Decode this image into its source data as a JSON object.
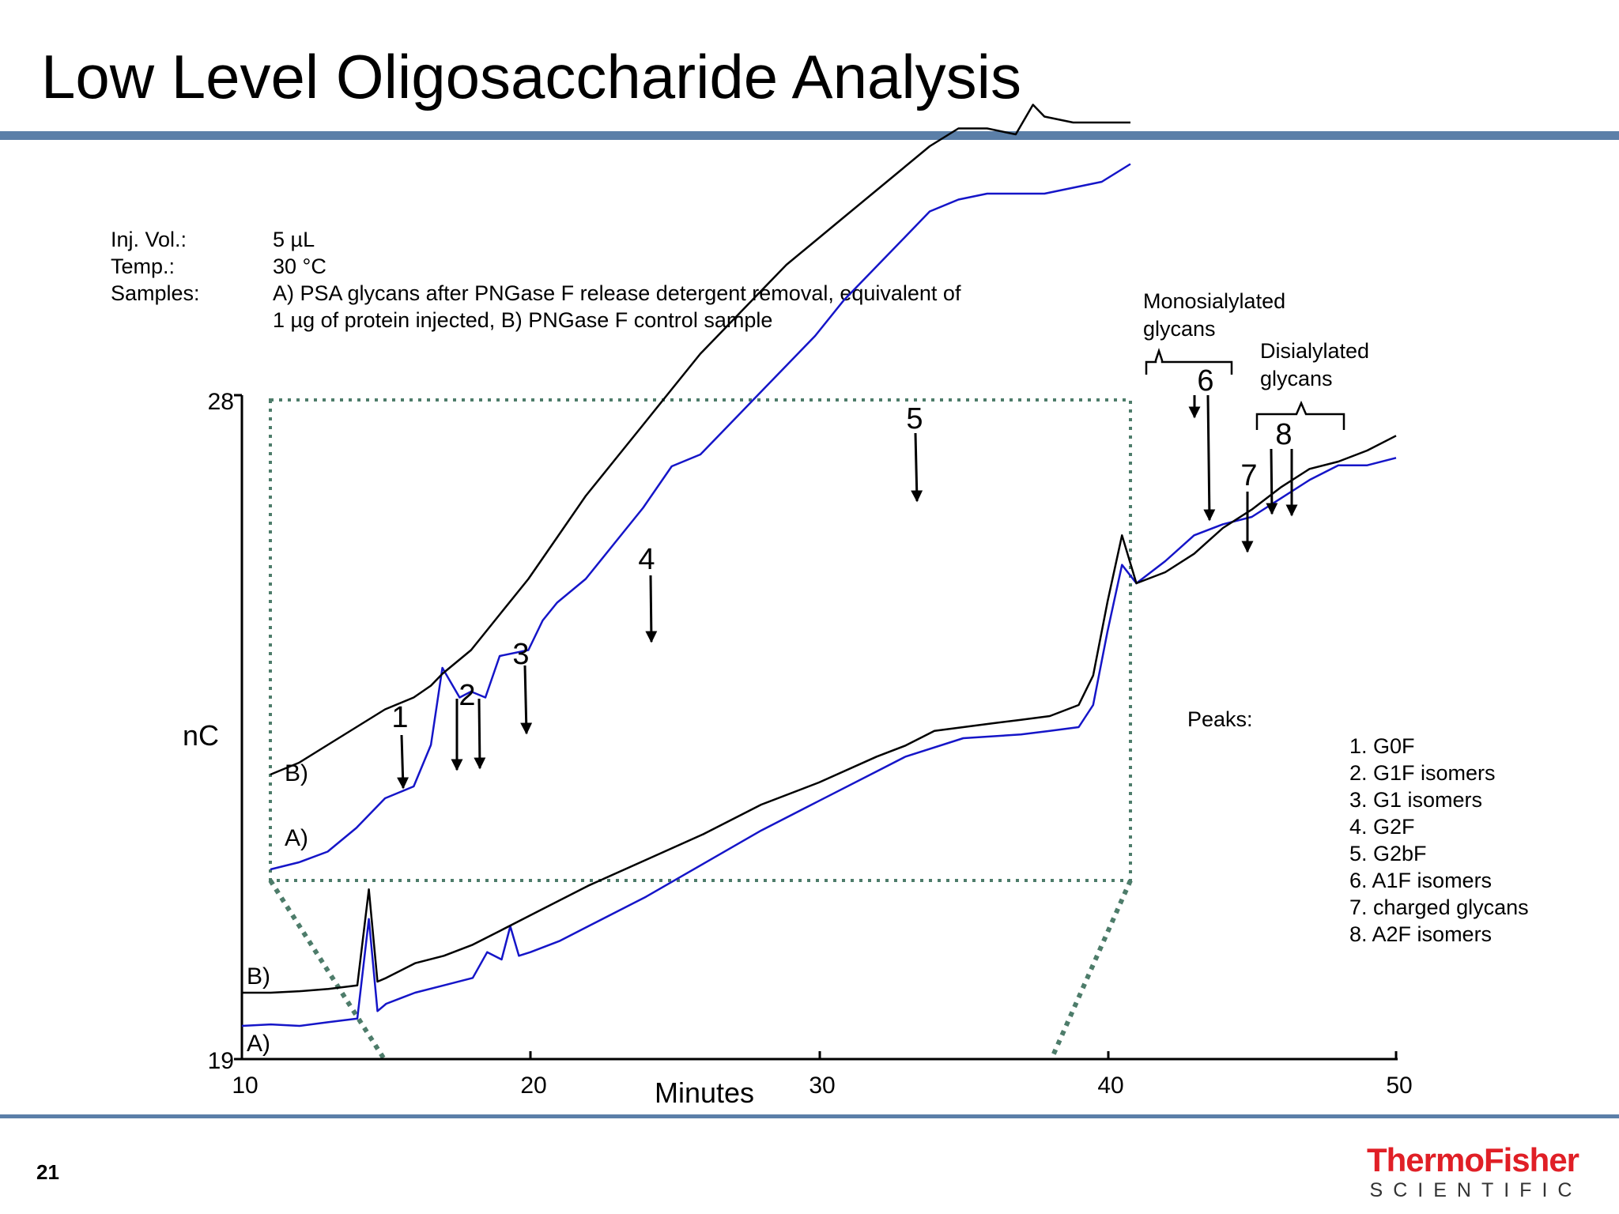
{
  "title": "Low Level Oligosaccharide Analysis",
  "page_number": "21",
  "logo": {
    "line1": "ThermoFisher",
    "line2": "SCIENTIFIC"
  },
  "conditions": [
    {
      "label": "Inj. Vol.:",
      "value": "5 µL"
    },
    {
      "label": "Temp.:",
      "value": "30 °C"
    },
    {
      "label": "Samples:",
      "value": "A) PSA glycans after PNGase F release detergent removal, equivalent of"
    },
    {
      "label": "",
      "value": "1 µg of protein injected,  B) PNGase F control sample"
    }
  ],
  "colors": {
    "rule": "#5b7fa8",
    "trace_a": "#1515c8",
    "trace_b": "#000000",
    "zoom_box": "#4d7c6a",
    "logo_red": "#e01f26"
  },
  "chart_data": {
    "type": "line",
    "xlabel": "Minutes",
    "ylabel": "nC",
    "xlim": [
      10,
      50
    ],
    "ylim": [
      19,
      28
    ],
    "x_ticks": [
      "10",
      "20",
      "30",
      "40",
      "50"
    ],
    "y_ticks": [
      "28",
      "19"
    ],
    "zoom_range_minutes": [
      11,
      41
    ],
    "series": [
      {
        "name": "A)",
        "color": "#1515c8",
        "x": [
          10,
          11,
          12,
          13,
          14,
          14.4,
          14.7,
          15,
          16,
          17,
          18,
          18.5,
          19,
          19.3,
          19.6,
          20,
          21,
          22,
          24,
          26,
          28,
          30,
          32,
          33,
          35,
          37,
          38,
          39,
          39.5,
          40,
          40.5,
          41,
          42,
          43,
          44,
          45,
          46,
          47,
          48,
          49,
          50
        ],
        "y": [
          19.45,
          19.47,
          19.45,
          19.5,
          19.55,
          20.9,
          19.65,
          19.75,
          19.9,
          20.0,
          20.1,
          20.45,
          20.35,
          20.8,
          20.4,
          20.45,
          20.6,
          20.8,
          21.2,
          21.65,
          22.1,
          22.5,
          22.9,
          23.1,
          23.35,
          23.4,
          23.45,
          23.5,
          23.8,
          24.8,
          25.7,
          25.45,
          25.75,
          26.1,
          26.25,
          26.35,
          26.6,
          26.85,
          27.05,
          27.05,
          27.15
        ]
      },
      {
        "name": "B)",
        "color": "#000000",
        "x": [
          10,
          11,
          12,
          13,
          14,
          14.4,
          14.7,
          15,
          16,
          17,
          18,
          19,
          20,
          22,
          24,
          26,
          28,
          30,
          32,
          33,
          34,
          35,
          36,
          37,
          38,
          39,
          39.5,
          40,
          40.5,
          41,
          42,
          43,
          44,
          45,
          46,
          47,
          48,
          49,
          50
        ],
        "y": [
          19.9,
          19.9,
          19.92,
          19.95,
          20.0,
          21.3,
          20.05,
          20.1,
          20.3,
          20.4,
          20.55,
          20.75,
          20.95,
          21.35,
          21.7,
          22.05,
          22.45,
          22.75,
          23.1,
          23.25,
          23.45,
          23.5,
          23.55,
          23.6,
          23.65,
          23.8,
          24.2,
          25.2,
          26.1,
          25.45,
          25.6,
          25.85,
          26.2,
          26.45,
          26.75,
          27.0,
          27.1,
          27.25,
          27.45
        ]
      }
    ],
    "inset_series": [
      {
        "name": "A)",
        "color": "#1515c8",
        "x": [
          11,
          11.5,
          12,
          13,
          14,
          15,
          16,
          16.6,
          17,
          17.6,
          18,
          18.5,
          19,
          20,
          20.5,
          21,
          22,
          23,
          24,
          25,
          26,
          27,
          28,
          29,
          30,
          31,
          32,
          33,
          34,
          35,
          36,
          37,
          38,
          39,
          40,
          41
        ],
        "y": [
          21.9,
          21.93,
          21.96,
          22.05,
          22.25,
          22.5,
          22.6,
          22.95,
          23.6,
          23.35,
          23.4,
          23.35,
          23.7,
          23.75,
          24.0,
          24.15,
          24.35,
          24.65,
          24.95,
          25.3,
          25.4,
          25.65,
          25.9,
          26.15,
          26.4,
          26.7,
          26.95,
          27.2,
          27.45,
          27.55,
          27.6,
          27.6,
          27.6,
          27.65,
          27.7,
          27.85
        ]
      },
      {
        "name": "B)",
        "color": "#000000",
        "x": [
          11,
          12,
          13,
          14,
          15,
          16,
          16.6,
          17,
          18,
          19,
          20,
          21,
          22,
          23,
          24,
          25,
          26,
          27,
          28,
          29,
          30,
          31,
          32,
          33,
          34,
          35,
          36,
          37,
          37.6,
          38,
          39,
          40,
          41
        ],
        "y": [
          22.7,
          22.8,
          22.95,
          23.1,
          23.25,
          23.35,
          23.45,
          23.55,
          23.75,
          24.05,
          24.35,
          24.7,
          25.05,
          25.35,
          25.65,
          25.95,
          26.25,
          26.5,
          26.75,
          27.0,
          27.2,
          27.4,
          27.6,
          27.8,
          28.0,
          28.15,
          28.15,
          28.1,
          28.35,
          28.25,
          28.2,
          28.2,
          28.2
        ]
      }
    ],
    "peaks_title": "Peaks:",
    "peaks": [
      "1. G0F",
      "2. G1F isomers",
      "3. G1 isomers",
      "4. G2F",
      "5. G2bF",
      "6. A1F isomers",
      "7. charged glycans",
      "8. A2F isomers"
    ],
    "peak_markers": [
      "1",
      "2",
      "3",
      "4",
      "5",
      "6",
      "7",
      "8"
    ],
    "trace_labels": [
      "A)",
      "B)"
    ],
    "inset_trace_labels": [
      "A)",
      "B)"
    ],
    "annotations": {
      "monosialylated": [
        "Monosialylated",
        "glycans"
      ],
      "disialylated": [
        "Disialylated",
        "glycans"
      ]
    }
  }
}
